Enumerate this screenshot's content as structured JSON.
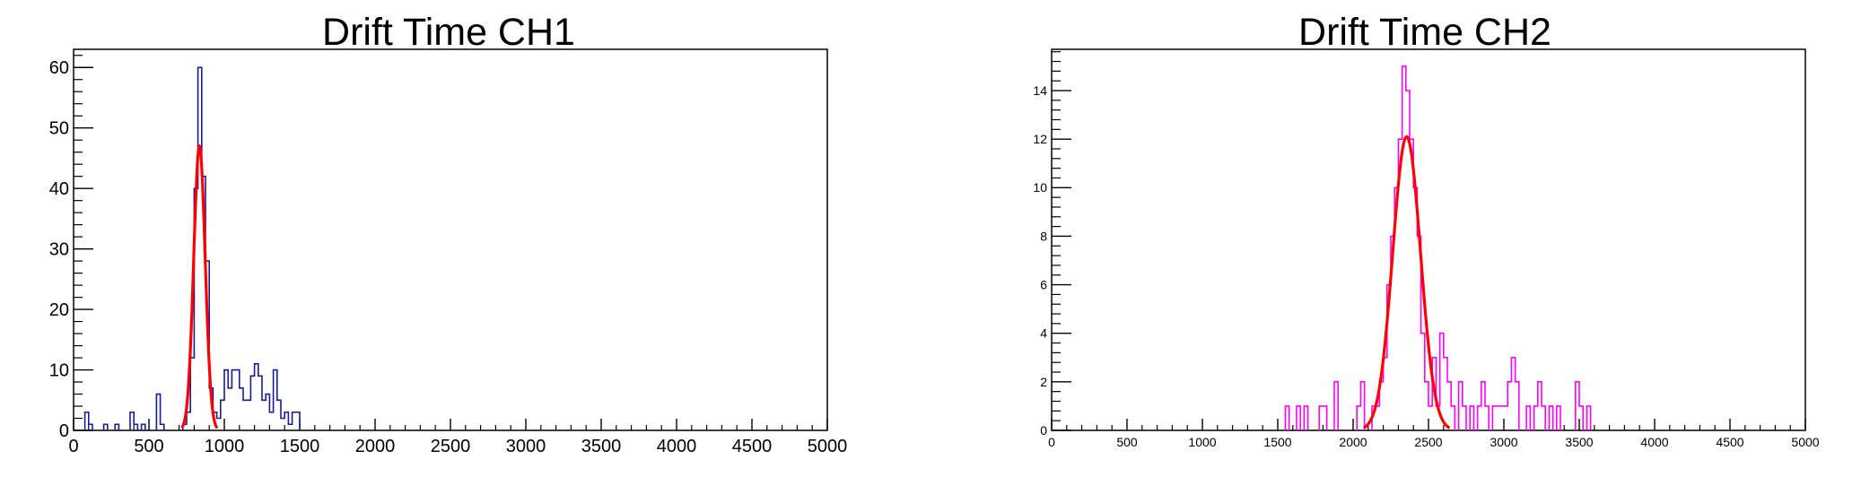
{
  "chart_data": [
    {
      "type": "histogram",
      "title": "Drift Time CH1",
      "xlim": [
        0,
        5000
      ],
      "ylim": [
        0,
        63
      ],
      "x_ticks": [
        0,
        500,
        1000,
        1500,
        2000,
        2500,
        3000,
        3500,
        4000,
        4500,
        5000
      ],
      "y_ticks": [
        0,
        10,
        20,
        30,
        40,
        50,
        60
      ],
      "bin_width": 25,
      "hist_color": "#1a1a9c",
      "fit_color": "#ff0000",
      "bins": [
        [
          75,
          3
        ],
        [
          100,
          1
        ],
        [
          200,
          1
        ],
        [
          275,
          1
        ],
        [
          375,
          3
        ],
        [
          400,
          1
        ],
        [
          450,
          1
        ],
        [
          550,
          6
        ],
        [
          575,
          1
        ],
        [
          725,
          1
        ],
        [
          750,
          3
        ],
        [
          775,
          12
        ],
        [
          800,
          40
        ],
        [
          825,
          60
        ],
        [
          850,
          42
        ],
        [
          875,
          28
        ],
        [
          900,
          7
        ],
        [
          925,
          3
        ],
        [
          950,
          2
        ],
        [
          975,
          5
        ],
        [
          1000,
          10
        ],
        [
          1025,
          7
        ],
        [
          1050,
          10
        ],
        [
          1075,
          10
        ],
        [
          1100,
          7
        ],
        [
          1125,
          5
        ],
        [
          1150,
          5
        ],
        [
          1175,
          9
        ],
        [
          1200,
          11
        ],
        [
          1225,
          9
        ],
        [
          1250,
          5
        ],
        [
          1275,
          6
        ],
        [
          1300,
          3
        ],
        [
          1325,
          10
        ],
        [
          1350,
          5
        ],
        [
          1375,
          2
        ],
        [
          1400,
          3
        ],
        [
          1425,
          1
        ],
        [
          1450,
          3
        ],
        [
          1475,
          3
        ]
      ],
      "fit": {
        "function": "gaus",
        "constant": 47,
        "mean": 835,
        "sigma": 38
      }
    },
    {
      "type": "histogram",
      "title": "Drift Time CH2",
      "xlim": [
        0,
        5000
      ],
      "ylim": [
        0,
        15.7
      ],
      "x_ticks": [
        0,
        500,
        1000,
        1500,
        2000,
        2500,
        3000,
        3500,
        4000,
        4500,
        5000
      ],
      "y_ticks": [
        0,
        2,
        4,
        6,
        8,
        10,
        12,
        14
      ],
      "bin_width": 25,
      "hist_color": "#ff00ff",
      "fit_color": "#ff0000",
      "bins": [
        [
          1550,
          1
        ],
        [
          1625,
          1
        ],
        [
          1675,
          1
        ],
        [
          1775,
          1
        ],
        [
          1800,
          1
        ],
        [
          1875,
          2
        ],
        [
          2025,
          1
        ],
        [
          2050,
          2
        ],
        [
          2125,
          1
        ],
        [
          2150,
          1
        ],
        [
          2175,
          2
        ],
        [
          2200,
          3
        ],
        [
          2225,
          6
        ],
        [
          2250,
          8
        ],
        [
          2275,
          10
        ],
        [
          2300,
          12
        ],
        [
          2325,
          15
        ],
        [
          2350,
          14
        ],
        [
          2375,
          12
        ],
        [
          2400,
          10
        ],
        [
          2425,
          8
        ],
        [
          2450,
          4
        ],
        [
          2475,
          2
        ],
        [
          2500,
          1
        ],
        [
          2525,
          3
        ],
        [
          2550,
          1
        ],
        [
          2575,
          4
        ],
        [
          2600,
          3
        ],
        [
          2625,
          2
        ],
        [
          2650,
          1
        ],
        [
          2700,
          2
        ],
        [
          2725,
          1
        ],
        [
          2775,
          1
        ],
        [
          2825,
          1
        ],
        [
          2850,
          2
        ],
        [
          2875,
          1
        ],
        [
          2925,
          1
        ],
        [
          2950,
          1
        ],
        [
          2975,
          1
        ],
        [
          3000,
          1
        ],
        [
          3025,
          2
        ],
        [
          3050,
          3
        ],
        [
          3075,
          2
        ],
        [
          3150,
          1
        ],
        [
          3200,
          1
        ],
        [
          3225,
          2
        ],
        [
          3250,
          1
        ],
        [
          3300,
          1
        ],
        [
          3350,
          1
        ],
        [
          3475,
          2
        ],
        [
          3500,
          1
        ],
        [
          3550,
          1
        ]
      ],
      "fit": {
        "function": "gaus",
        "constant": 12.1,
        "mean": 2355,
        "sigma": 92
      }
    }
  ]
}
